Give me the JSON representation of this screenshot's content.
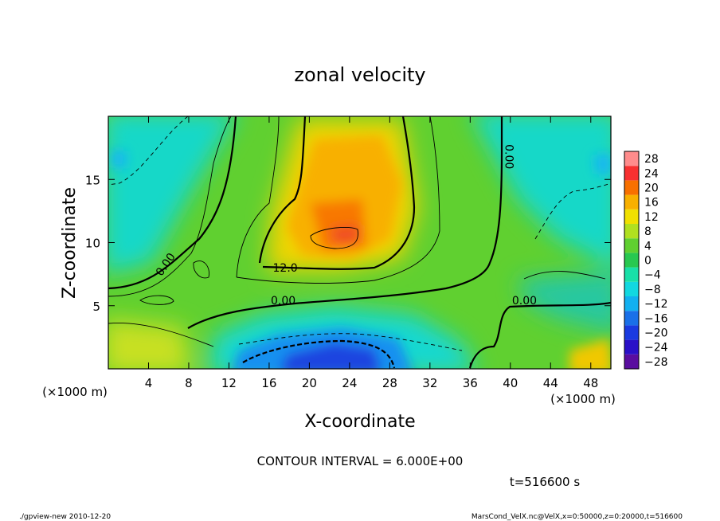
{
  "chart_data": {
    "type": "heatmap",
    "title": "zonal velocity",
    "xlabel": "X-coordinate",
    "ylabel": "Z-coordinate",
    "x_unit_label_left": "(×1000 m)",
    "x_unit_label_right": "(×1000 m)",
    "xlim": [
      0,
      50
    ],
    "ylim": [
      0,
      20
    ],
    "x_ticks": [
      4,
      8,
      12,
      16,
      20,
      24,
      28,
      32,
      36,
      40,
      44,
      48
    ],
    "y_ticks": [
      5,
      10,
      15
    ],
    "colorbar": {
      "levels": [
        -28,
        -24,
        -20,
        -16,
        -12,
        -8,
        -4,
        0,
        4,
        8,
        12,
        16,
        20,
        24,
        28
      ],
      "colors": [
        "#5a0ea0",
        "#2a10c8",
        "#1a3ae0",
        "#1a70e8",
        "#12b0f0",
        "#12d8e0",
        "#18e0a8",
        "#28c850",
        "#60d030",
        "#b0e020",
        "#f0e000",
        "#f8b000",
        "#f87000",
        "#f83030",
        "#ff8c8c"
      ]
    },
    "contour_labels": [
      {
        "text": "0.00",
        "x": 6,
        "z": 8.1
      },
      {
        "text": "12.0",
        "x": 17.6,
        "z": 7.7
      },
      {
        "text": "0.00",
        "x": 17.4,
        "z": 5.1
      },
      {
        "text": "0.00",
        "x": 39.5,
        "z": 16.8
      },
      {
        "text": "0.00",
        "x": 41.4,
        "z": 5.1
      }
    ],
    "annotations": {
      "contour_interval": "CONTOUR INTERVAL = 6.000E+00",
      "time": "t=516600 s"
    }
  },
  "footer": {
    "left": "./gpview-new   2010-12-20",
    "right": "MarsCond_VelX.nc@VelX,x=0:50000,z=0:20000,t=516600"
  }
}
